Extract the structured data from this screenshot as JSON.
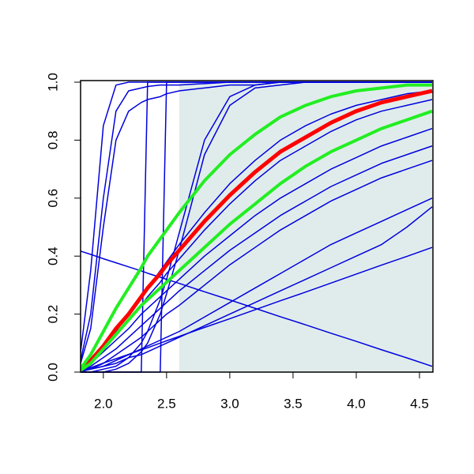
{
  "chart_data": {
    "type": "line",
    "x": [
      1.8,
      1.9,
      2.0,
      2.1,
      2.2,
      2.3,
      2.35,
      2.45,
      2.5,
      2.6,
      2.8,
      3.0,
      3.2,
      3.4,
      3.6,
      3.8,
      4.0,
      4.2,
      4.4,
      4.6
    ],
    "xlim": [
      1.82,
      4.6
    ],
    "ylim": [
      0,
      1
    ],
    "xticks": [
      {
        "value": 2.0,
        "label": "2.0"
      },
      {
        "value": 2.5,
        "label": "2.5"
      },
      {
        "value": 3.0,
        "label": "3.0"
      },
      {
        "value": 3.5,
        "label": "3.5"
      },
      {
        "value": 4.0,
        "label": "4.0"
      },
      {
        "value": 4.5,
        "label": "4.5"
      }
    ],
    "yticks": [
      {
        "value": 0.0,
        "label": "0.0"
      },
      {
        "value": 0.2,
        "label": "0.2"
      },
      {
        "value": 0.4,
        "label": "0.4"
      },
      {
        "value": 0.6,
        "label": "0.6"
      },
      {
        "value": 0.8,
        "label": "0.8"
      },
      {
        "value": 1.0,
        "label": "1.0"
      }
    ],
    "shaded_region": {
      "x": [
        2.6,
        4.6
      ],
      "color": "#e0ecec"
    },
    "series": [
      {
        "color": "#0000dd",
        "line_width": 1.5,
        "values": [
          0,
          0.35,
          0.85,
          0.99,
          1,
          1,
          1,
          1,
          1,
          1,
          1,
          1,
          1,
          1,
          1,
          1,
          1,
          1,
          1,
          1
        ]
      },
      {
        "color": "#0000dd",
        "line_width": 1.5,
        "values": [
          0,
          0.2,
          0.6,
          0.9,
          0.97,
          0.98,
          0.985,
          0.99,
          0.99,
          0.99,
          0.995,
          1,
          1,
          1,
          1,
          1,
          1,
          1,
          1,
          1
        ]
      },
      {
        "color": "#0000dd",
        "line_width": 1.5,
        "values": [
          0,
          0.15,
          0.5,
          0.8,
          0.9,
          0.93,
          0.94,
          0.95,
          0.96,
          0.97,
          0.98,
          0.99,
          0.99,
          1,
          1,
          1,
          1,
          1,
          1,
          1
        ]
      },
      {
        "color": "#0000dd",
        "line_width": 1.5,
        "values": [
          0,
          0,
          0,
          0,
          0,
          0,
          1,
          1,
          1,
          1,
          1,
          1,
          1,
          1,
          1,
          1,
          1,
          1,
          1,
          1
        ]
      },
      {
        "color": "#0000dd",
        "line_width": 1.5,
        "values": [
          0,
          0,
          0,
          0,
          0,
          0,
          0,
          0,
          1,
          1,
          1,
          1,
          1,
          1,
          1,
          1,
          1,
          1,
          1,
          1
        ]
      },
      {
        "color": "#0000dd",
        "line_width": 1.5,
        "values": [
          0,
          0,
          0.01,
          0.02,
          0.05,
          0.1,
          0.14,
          0.25,
          0.32,
          0.48,
          0.8,
          0.95,
          0.99,
          1,
          1,
          1,
          1,
          1,
          1,
          1
        ]
      },
      {
        "color": "#0000dd",
        "line_width": 1.5,
        "values": [
          0,
          0,
          0,
          0.01,
          0.03,
          0.07,
          0.1,
          0.2,
          0.27,
          0.42,
          0.75,
          0.92,
          0.98,
          0.99,
          1,
          1,
          1,
          1,
          1,
          1
        ]
      },
      {
        "color": "#0000dd",
        "line_width": 1.5,
        "values": [
          0,
          0.03,
          0.07,
          0.11,
          0.15,
          0.2,
          0.22,
          0.26,
          0.28,
          0.32,
          0.4,
          0.47,
          0.54,
          0.6,
          0.65,
          0.7,
          0.74,
          0.78,
          0.81,
          0.84
        ]
      },
      {
        "color": "#0000dd",
        "line_width": 1.5,
        "values": [
          0,
          0.02,
          0.05,
          0.08,
          0.12,
          0.16,
          0.18,
          0.22,
          0.24,
          0.28,
          0.35,
          0.42,
          0.48,
          0.54,
          0.59,
          0.64,
          0.68,
          0.72,
          0.75,
          0.78
        ]
      },
      {
        "color": "#0000dd",
        "line_width": 1.5,
        "values": [
          0,
          0.01,
          0.03,
          0.06,
          0.09,
          0.12,
          0.14,
          0.18,
          0.2,
          0.23,
          0.3,
          0.37,
          0.43,
          0.49,
          0.54,
          0.59,
          0.63,
          0.67,
          0.7,
          0.73
        ]
      },
      {
        "color": "#0000dd",
        "line_width": 1.5,
        "values": [
          0,
          0.01,
          0.02,
          0.04,
          0.06,
          0.08,
          0.09,
          0.11,
          0.12,
          0.14,
          0.19,
          0.24,
          0.29,
          0.34,
          0.39,
          0.44,
          0.48,
          0.52,
          0.56,
          0.6
        ]
      },
      {
        "color": "#0000dd",
        "line_width": 1.5,
        "values": [
          0,
          0.01,
          0.02,
          0.03,
          0.05,
          0.06,
          0.07,
          0.09,
          0.1,
          0.12,
          0.16,
          0.2,
          0.24,
          0.28,
          0.32,
          0.36,
          0.4,
          0.44,
          0.5,
          0.57
        ]
      },
      {
        "color": "#0000dd",
        "line_width": 1.5,
        "values": [
          0,
          0.04,
          0.09,
          0.14,
          0.2,
          0.26,
          0.29,
          0.35,
          0.38,
          0.44,
          0.55,
          0.65,
          0.73,
          0.8,
          0.85,
          0.89,
          0.92,
          0.94,
          0.96,
          0.97
        ]
      },
      {
        "color": "#0000dd",
        "line_width": 1.5,
        "values": [
          0,
          0.03,
          0.08,
          0.13,
          0.18,
          0.23,
          0.26,
          0.31,
          0.34,
          0.39,
          0.49,
          0.58,
          0.66,
          0.73,
          0.78,
          0.83,
          0.87,
          0.9,
          0.92,
          0.94
        ]
      },
      {
        "color": "#0000dd",
        "line_width": 1.5,
        "values": [
          0,
          0.015,
          0.031,
          0.046,
          0.061,
          0.077,
          0.084,
          0.1,
          0.108,
          0.123,
          0.154,
          0.184,
          0.215,
          0.246,
          0.276,
          0.307,
          0.338,
          0.369,
          0.399,
          0.43
        ]
      },
      {
        "color": "#0000dd",
        "line_width": 1.5,
        "values": [
          0.42,
          0.406,
          0.391,
          0.377,
          0.363,
          0.349,
          0.341,
          0.327,
          0.32,
          0.306,
          0.277,
          0.249,
          0.22,
          0.191,
          0.163,
          0.134,
          0.106,
          0.077,
          0.049,
          0.02
        ]
      },
      {
        "color": "#ff0000",
        "line_width": 5,
        "values": [
          0,
          0.04,
          0.09,
          0.15,
          0.2,
          0.26,
          0.29,
          0.34,
          0.37,
          0.42,
          0.52,
          0.61,
          0.69,
          0.76,
          0.81,
          0.86,
          0.9,
          0.93,
          0.95,
          0.97
        ]
      },
      {
        "color": "#22ee22",
        "line_width": 4,
        "values": [
          0,
          0.06,
          0.14,
          0.22,
          0.29,
          0.36,
          0.4,
          0.46,
          0.49,
          0.55,
          0.66,
          0.75,
          0.82,
          0.88,
          0.92,
          0.95,
          0.97,
          0.98,
          0.99,
          0.99
        ]
      },
      {
        "color": "#22ee22",
        "line_width": 4,
        "values": [
          0,
          0.03,
          0.08,
          0.13,
          0.18,
          0.23,
          0.25,
          0.29,
          0.31,
          0.35,
          0.43,
          0.51,
          0.58,
          0.65,
          0.71,
          0.76,
          0.8,
          0.84,
          0.87,
          0.9
        ]
      }
    ]
  }
}
